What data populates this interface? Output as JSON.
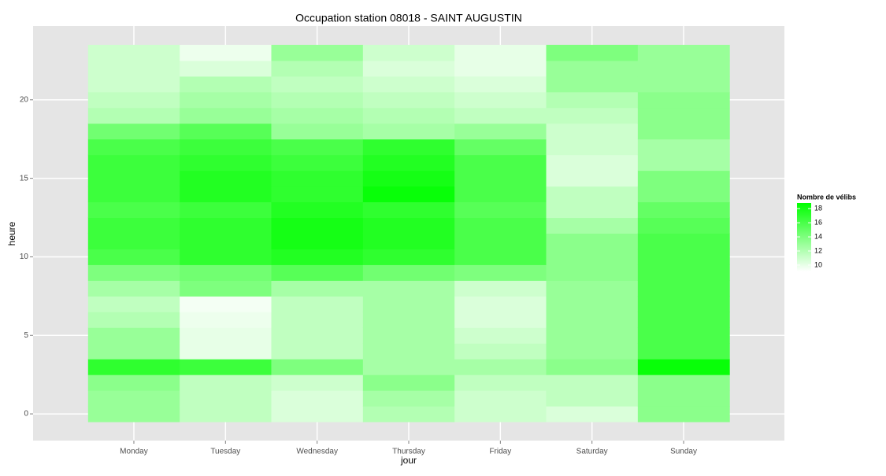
{
  "chart_data": {
    "type": "heatmap",
    "title": "Occupation station 08018 - SAINT AUGUSTIN",
    "x_label": "jour",
    "y_label": "heure",
    "categories": [
      "Monday",
      "Tuesday",
      "Wednesday",
      "Thursday",
      "Friday",
      "Saturday",
      "Sunday"
    ],
    "hours": [
      0,
      1,
      2,
      3,
      4,
      5,
      6,
      7,
      8,
      9,
      10,
      11,
      12,
      13,
      14,
      15,
      16,
      17,
      18,
      19,
      20,
      21,
      22,
      23
    ],
    "values": [
      [
        13,
        13,
        13.5,
        17,
        13,
        13,
        12,
        11.5,
        12.5,
        14,
        16,
        16.5,
        16.5,
        16,
        16.5,
        16.5,
        16.5,
        16,
        14.5,
        12,
        11.5,
        11,
        11,
        11
      ],
      [
        11.5,
        11.5,
        11.5,
        16.5,
        10,
        10,
        9.8,
        9.5,
        14,
        14.5,
        17,
        17,
        17,
        16.5,
        17.5,
        17.5,
        17,
        16.5,
        15.5,
        13,
        12.5,
        12,
        10.5,
        9.8
      ],
      [
        10.5,
        10.5,
        11,
        14,
        11.5,
        11.5,
        11.5,
        11.5,
        12.5,
        15.5,
        17.5,
        18,
        18,
        17.5,
        17,
        17,
        16.5,
        16,
        13,
        12.5,
        12,
        11.5,
        12,
        13
      ],
      [
        12,
        12.5,
        13.5,
        12.5,
        12.5,
        12.5,
        12.5,
        12.5,
        12.5,
        14.5,
        17,
        17.5,
        17.5,
        17,
        18.5,
        18,
        17.5,
        17,
        12.5,
        12,
        11.5,
        11,
        10.5,
        11
      ],
      [
        11,
        11,
        11.5,
        12.5,
        11.5,
        11,
        10.5,
        10.5,
        11,
        14,
        16,
        16,
        16,
        15.5,
        16,
        16,
        16,
        15,
        13,
        11.5,
        11,
        10.5,
        10,
        10
      ],
      [
        10.5,
        11.5,
        11.5,
        13.5,
        13,
        13,
        13,
        13,
        13,
        13.5,
        13.5,
        13.5,
        12.5,
        11.5,
        11.5,
        10.5,
        10.5,
        11,
        11,
        11.5,
        12,
        13,
        13,
        14
      ],
      [
        13.5,
        13.5,
        13.5,
        18.5,
        16,
        16,
        16,
        16,
        16,
        16,
        16,
        16,
        15.5,
        15,
        14,
        14,
        12.5,
        12.5,
        13.5,
        13.5,
        13.5,
        13,
        13,
        13
      ]
    ],
    "ylim": [
      -1.7,
      24.7
    ],
    "yticks": [
      0,
      5,
      10,
      15,
      20
    ],
    "legend_title": "Nombre de vélibs",
    "colorlim": [
      9.1,
      18.8
    ],
    "colorticks": [
      10,
      12,
      14,
      16,
      18
    ],
    "low_color": "#ffffff",
    "high_color": "#00ff00",
    "grid": true
  }
}
